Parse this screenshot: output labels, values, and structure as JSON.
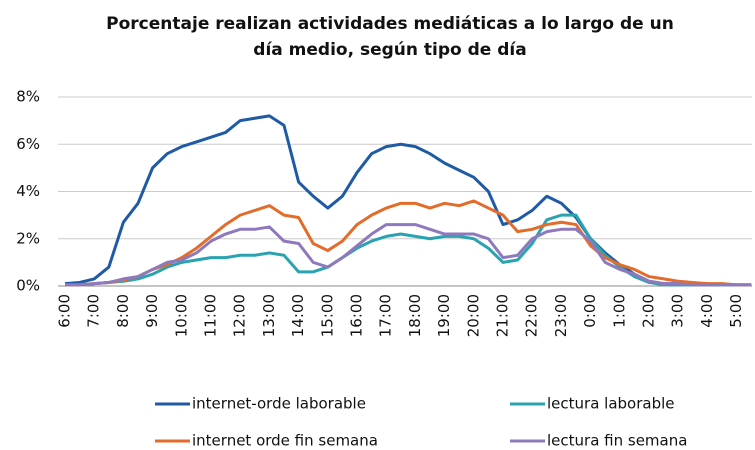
{
  "chart_data": {
    "type": "line",
    "title": [
      "Porcentaje realizan actividades mediáticas a lo largo de un",
      "día medio, según tipo de día"
    ],
    "categories": [
      "6:00",
      null,
      "7:00",
      null,
      "8:00",
      null,
      "9:00",
      null,
      "10:00",
      null,
      "11:00",
      null,
      "12:00",
      null,
      "13:00",
      null,
      "14:00",
      null,
      "15:00",
      null,
      "16:00",
      null,
      "17:00",
      null,
      "18:00",
      null,
      "19:00",
      null,
      "20:00",
      null,
      "21:00",
      null,
      "22:00",
      null,
      "23:00",
      null,
      "0:00",
      null,
      "1:00",
      null,
      "2:00",
      null,
      "3:00",
      null,
      "4:00",
      null,
      "5:00",
      null
    ],
    "series": [
      {
        "name": "internet-orde laborable",
        "color": "#1f5aa6",
        "values": [
          0.1,
          0.15,
          0.3,
          0.8,
          2.7,
          3.5,
          5.0,
          5.6,
          5.9,
          6.1,
          6.3,
          6.5,
          7.0,
          7.1,
          7.2,
          6.8,
          4.4,
          3.8,
          3.3,
          3.8,
          4.8,
          5.6,
          5.9,
          6.0,
          5.9,
          5.6,
          5.2,
          4.9,
          4.6,
          4.0,
          2.6,
          2.8,
          3.2,
          3.8,
          3.5,
          2.9,
          2.0,
          1.4,
          0.9,
          0.5,
          0.2,
          0.1,
          0.1,
          0.05,
          0.05,
          0.05,
          0.05,
          0.05
        ]
      },
      {
        "name": "lectura laborable",
        "color": "#2aa3b0",
        "values": [
          0.05,
          0.05,
          0.1,
          0.15,
          0.2,
          0.3,
          0.5,
          0.8,
          1.0,
          1.1,
          1.2,
          1.2,
          1.3,
          1.3,
          1.4,
          1.3,
          0.6,
          0.6,
          0.8,
          1.2,
          1.6,
          1.9,
          2.1,
          2.2,
          2.1,
          2.0,
          2.1,
          2.1,
          2.0,
          1.6,
          1.0,
          1.1,
          1.8,
          2.8,
          3.0,
          3.0,
          2.0,
          1.3,
          0.8,
          0.4,
          0.15,
          0.05,
          0.05,
          0.05,
          0.05,
          0.05,
          0.05,
          0.05
        ]
      },
      {
        "name": "internet orde fin semana",
        "color": "#e36c2a",
        "values": [
          0.05,
          0.05,
          0.1,
          0.15,
          0.25,
          0.4,
          0.7,
          0.9,
          1.2,
          1.6,
          2.1,
          2.6,
          3.0,
          3.2,
          3.4,
          3.0,
          2.9,
          1.8,
          1.5,
          1.9,
          2.6,
          3.0,
          3.3,
          3.5,
          3.5,
          3.3,
          3.5,
          3.4,
          3.6,
          3.3,
          3.0,
          2.3,
          2.4,
          2.6,
          2.7,
          2.6,
          1.7,
          1.2,
          0.9,
          0.7,
          0.4,
          0.3,
          0.2,
          0.15,
          0.1,
          0.1,
          0.05,
          0.05
        ]
      },
      {
        "name": "lectura fin semana",
        "color": "#8f79bd",
        "values": [
          0.05,
          0.05,
          0.1,
          0.15,
          0.3,
          0.4,
          0.7,
          1.0,
          1.1,
          1.4,
          1.9,
          2.2,
          2.4,
          2.4,
          2.5,
          1.9,
          1.8,
          1.0,
          0.8,
          1.2,
          1.7,
          2.2,
          2.6,
          2.6,
          2.6,
          2.4,
          2.2,
          2.2,
          2.2,
          2.0,
          1.2,
          1.3,
          2.0,
          2.3,
          2.4,
          2.4,
          1.9,
          1.0,
          0.7,
          0.5,
          0.2,
          0.1,
          0.1,
          0.05,
          0.05,
          0.05,
          0.05,
          0.05
        ]
      }
    ],
    "ylim": [
      0,
      8
    ],
    "yticks": [
      {
        "value": 0,
        "label": "0%"
      },
      {
        "value": 2,
        "label": "2%"
      },
      {
        "value": 4,
        "label": "4%"
      },
      {
        "value": 6,
        "label": "6%"
      },
      {
        "value": 8,
        "label": "8%"
      }
    ],
    "grid": true,
    "legend": "bottom"
  }
}
